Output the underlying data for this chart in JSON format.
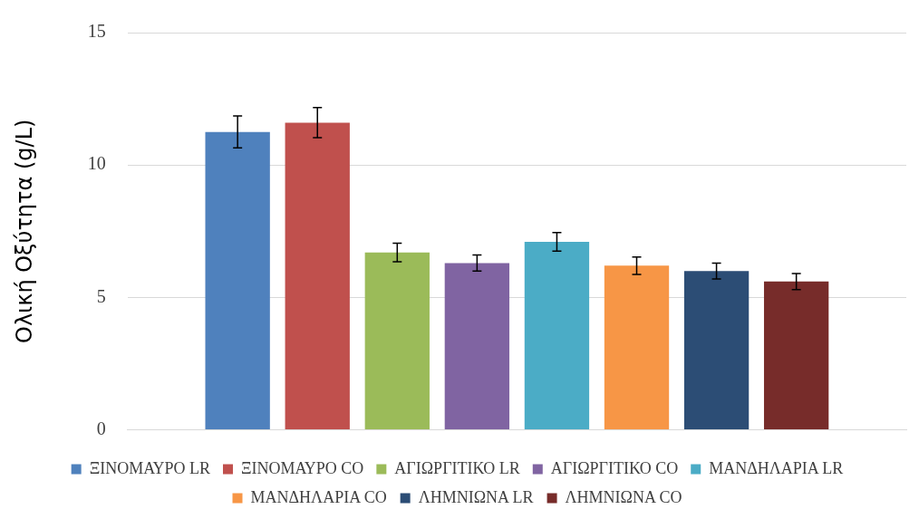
{
  "chart_data": {
    "type": "bar",
    "ylabel": "Ολική Οξύτητα (g/L)",
    "categories": [
      null
    ],
    "series": [
      {
        "name": "ΞΙΝΟΜΑΥΡΟ LR",
        "color": "#4f81bd",
        "values": [
          11.25
        ],
        "errors": [
          0.6
        ]
      },
      {
        "name": "ΞΙΝΟΜΑΥΡΟ CO",
        "color": "#c0504d",
        "values": [
          11.6
        ],
        "errors": [
          0.57
        ]
      },
      {
        "name": "ΑΓΙΩΡΓΙΤΙΚΟ LR",
        "color": "#9bbb59",
        "values": [
          6.7
        ],
        "errors": [
          0.35
        ]
      },
      {
        "name": "ΑΓΙΩΡΓΙΤΙΚΟ CO",
        "color": "#8064a2",
        "values": [
          6.3
        ],
        "errors": [
          0.3
        ]
      },
      {
        "name": "ΜΑΝΔΗΛΑΡΙΑ LR",
        "color": "#4bacc6",
        "values": [
          7.1
        ],
        "errors": [
          0.35
        ]
      },
      {
        "name": "ΜΑΝΔΗΛΑΡΙΑ CO",
        "color": "#f79646",
        "values": [
          6.2
        ],
        "errors": [
          0.33
        ]
      },
      {
        "name": "ΛΗΜΝΙΩΝΑ LR",
        "color": "#2c4d75",
        "values": [
          6.0
        ],
        "errors": [
          0.3
        ]
      },
      {
        "name": "ΛΗΜΝΙΩΝΑ CO",
        "color": "#772c2a",
        "values": [
          5.6
        ],
        "errors": [
          0.3
        ]
      }
    ],
    "ylim": [
      0,
      15
    ],
    "yticks": [
      0,
      5,
      10,
      15
    ],
    "grid": "y",
    "legend": "bottom"
  }
}
